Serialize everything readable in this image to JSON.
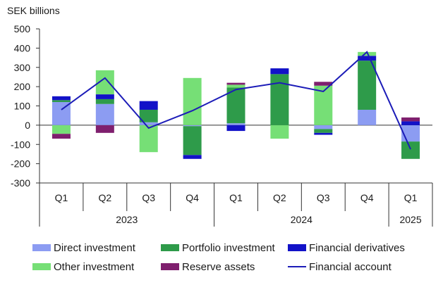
{
  "chart_data": {
    "type": "bar",
    "stacked": true,
    "ylabel": "SEK billions",
    "ylim": [
      -300,
      500
    ],
    "yticks": [
      500,
      400,
      300,
      200,
      100,
      0,
      -100,
      -200,
      -300
    ],
    "grid": false,
    "legend_position": "bottom",
    "categories": [
      "Q1",
      "Q2",
      "Q3",
      "Q4",
      "Q1",
      "Q2",
      "Q3",
      "Q4",
      "Q1"
    ],
    "year_groups": [
      {
        "label": "2023",
        "start": 0,
        "end": 3
      },
      {
        "label": "2024",
        "start": 4,
        "end": 7
      },
      {
        "label": "2025",
        "start": 8,
        "end": 8
      }
    ],
    "series": [
      {
        "name": "Direct investment",
        "color": "#8c9cf2",
        "values": [
          120,
          110,
          15,
          -5,
          10,
          0,
          -20,
          80,
          -85
        ]
      },
      {
        "name": "Portfolio investment",
        "color": "#2e9b4a",
        "values": [
          10,
          25,
          65,
          -150,
          185,
          265,
          -20,
          255,
          -90
        ]
      },
      {
        "name": "Financial derivatives",
        "color": "#1212c8",
        "values": [
          20,
          25,
          45,
          -20,
          -30,
          30,
          -10,
          25,
          20
        ]
      },
      {
        "name": "Other investment",
        "color": "#76df76",
        "values": [
          -45,
          125,
          -140,
          245,
          15,
          -70,
          205,
          20,
          0
        ]
      },
      {
        "name": "Reserve assets",
        "color": "#7f1f6e",
        "values": [
          -25,
          -40,
          0,
          0,
          10,
          0,
          20,
          0,
          20
        ]
      }
    ],
    "line_series": {
      "name": "Financial account",
      "color": "#1c1cb8",
      "values": [
        80,
        245,
        -15,
        75,
        185,
        220,
        175,
        380,
        -125
      ]
    }
  }
}
